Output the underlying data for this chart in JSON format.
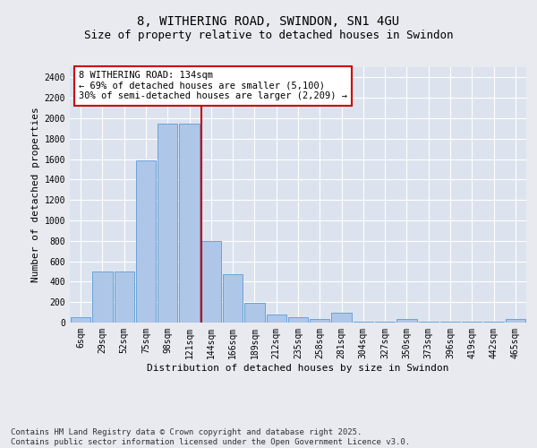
{
  "title": "8, WITHERING ROAD, SWINDON, SN1 4GU",
  "subtitle": "Size of property relative to detached houses in Swindon",
  "xlabel": "Distribution of detached houses by size in Swindon",
  "ylabel": "Number of detached properties",
  "categories": [
    "6sqm",
    "29sqm",
    "52sqm",
    "75sqm",
    "98sqm",
    "121sqm",
    "144sqm",
    "166sqm",
    "189sqm",
    "212sqm",
    "235sqm",
    "258sqm",
    "281sqm",
    "304sqm",
    "327sqm",
    "350sqm",
    "373sqm",
    "396sqm",
    "419sqm",
    "442sqm",
    "465sqm"
  ],
  "values": [
    50,
    500,
    500,
    1590,
    1950,
    1950,
    800,
    475,
    195,
    75,
    50,
    35,
    100,
    10,
    10,
    35,
    5,
    5,
    5,
    5,
    35
  ],
  "bar_color": "#aec6e8",
  "bar_edge_color": "#5b9bd5",
  "background_color": "#e8eaf0",
  "plot_bg_color": "#dce3ef",
  "grid_color": "#ffffff",
  "vline_color": "#cc0000",
  "annotation_text": "8 WITHERING ROAD: 134sqm\n← 69% of detached houses are smaller (5,100)\n30% of semi-detached houses are larger (2,209) →",
  "annotation_box_color": "#ffffff",
  "annotation_box_edge": "#cc0000",
  "ylim": [
    0,
    2500
  ],
  "yticks": [
    0,
    200,
    400,
    600,
    800,
    1000,
    1200,
    1400,
    1600,
    1800,
    2000,
    2200,
    2400
  ],
  "footer_text": "Contains HM Land Registry data © Crown copyright and database right 2025.\nContains public sector information licensed under the Open Government Licence v3.0.",
  "title_fontsize": 10,
  "subtitle_fontsize": 9,
  "axis_label_fontsize": 8,
  "tick_fontsize": 7,
  "annotation_fontsize": 7.5,
  "footer_fontsize": 6.5
}
